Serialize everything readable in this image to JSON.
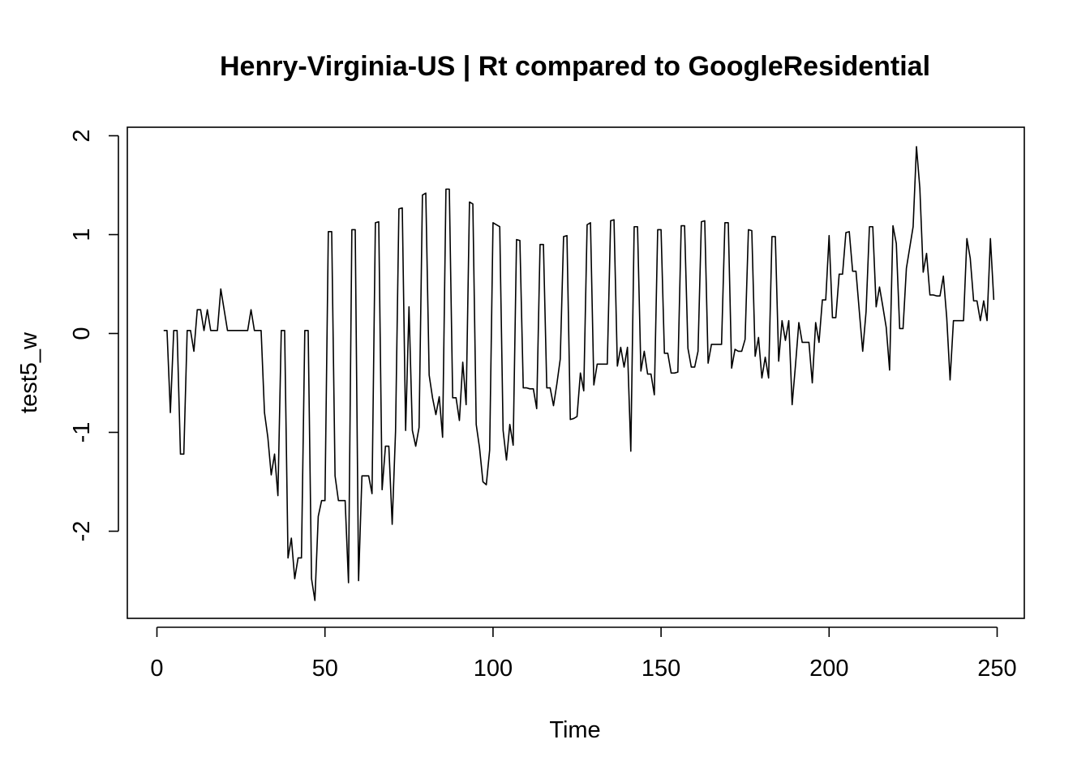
{
  "chart_data": {
    "type": "line",
    "title": "Henry-Virginia-US | Rt compared to GoogleResidential",
    "xlabel": "Time",
    "ylabel": "test5_w",
    "xlim": [
      0,
      250
    ],
    "ylim": [
      -2.7,
      2
    ],
    "x_ticks": [
      0,
      50,
      100,
      150,
      200,
      250
    ],
    "y_ticks": [
      -2,
      -1,
      0,
      1,
      2
    ],
    "x_tick_labels": [
      "0",
      "50",
      "100",
      "150",
      "200",
      "250"
    ],
    "y_tick_labels": [
      "-2",
      "-1",
      "0",
      "1",
      "2"
    ],
    "grid": false,
    "x_start": 2,
    "series": [
      {
        "values": [
          0.03,
          0.03,
          -0.8,
          0.03,
          0.03,
          -1.22,
          -1.22,
          0.03,
          0.03,
          -0.18,
          0.24,
          0.24,
          0.03,
          0.24,
          0.03,
          0.03,
          0.03,
          0.45,
          0.24,
          0.03,
          0.03,
          0.03,
          0.03,
          0.03,
          0.03,
          0.03,
          0.24,
          0.03,
          0.03,
          0.03,
          -0.8,
          -1.05,
          -1.43,
          -1.22,
          -1.64,
          0.03,
          0.03,
          -2.27,
          -2.07,
          -2.48,
          -2.27,
          -2.27,
          0.03,
          0.03,
          -2.48,
          -2.7,
          -1.85,
          -1.69,
          -1.69,
          1.03,
          1.03,
          -1.44,
          -1.69,
          -1.69,
          -1.69,
          -2.52,
          1.05,
          1.05,
          -2.5,
          -1.44,
          -1.44,
          -1.44,
          -1.62,
          1.12,
          1.13,
          -1.58,
          -1.14,
          -1.14,
          -1.93,
          -0.99,
          1.26,
          1.27,
          -0.98,
          0.27,
          -0.98,
          -1.14,
          -0.95,
          1.4,
          1.42,
          -0.42,
          -0.65,
          -0.82,
          -0.64,
          -1.05,
          1.46,
          1.46,
          -0.65,
          -0.65,
          -0.88,
          -0.29,
          -0.72,
          1.33,
          1.31,
          -0.92,
          -1.16,
          -1.5,
          -1.53,
          -1.18,
          1.12,
          1.1,
          1.08,
          -0.98,
          -1.28,
          -0.92,
          -1.13,
          0.95,
          0.94,
          -0.55,
          -0.55,
          -0.56,
          -0.56,
          -0.76,
          0.9,
          0.9,
          -0.55,
          -0.55,
          -0.73,
          -0.51,
          -0.26,
          0.98,
          0.99,
          -0.87,
          -0.86,
          -0.84,
          -0.4,
          -0.58,
          1.1,
          1.12,
          -0.52,
          -0.31,
          -0.31,
          -0.31,
          -0.31,
          1.14,
          1.15,
          -0.33,
          -0.14,
          -0.34,
          -0.14,
          -1.19,
          1.08,
          1.08,
          -0.38,
          -0.18,
          -0.41,
          -0.41,
          -0.62,
          1.05,
          1.05,
          -0.2,
          -0.2,
          -0.4,
          -0.4,
          -0.39,
          1.09,
          1.09,
          -0.15,
          -0.34,
          -0.34,
          -0.18,
          1.13,
          1.14,
          -0.3,
          -0.11,
          -0.11,
          -0.11,
          -0.11,
          1.12,
          1.12,
          -0.35,
          -0.16,
          -0.18,
          -0.18,
          -0.06,
          1.05,
          1.04,
          -0.23,
          -0.04,
          -0.45,
          -0.24,
          -0.45,
          0.98,
          0.98,
          -0.28,
          0.13,
          -0.07,
          0.13,
          -0.72,
          -0.32,
          0.11,
          -0.09,
          -0.09,
          -0.09,
          -0.5,
          0.11,
          -0.09,
          0.34,
          0.34,
          0.99,
          0.16,
          0.16,
          0.6,
          0.6,
          1.02,
          1.03,
          0.63,
          0.63,
          0.22,
          -0.18,
          0.22,
          1.08,
          1.08,
          0.27,
          0.47,
          0.27,
          0.06,
          -0.37,
          1.09,
          0.91,
          0.05,
          0.05,
          0.66,
          0.87,
          1.08,
          1.89,
          1.47,
          0.62,
          0.81,
          0.39,
          0.39,
          0.38,
          0.38,
          0.58,
          0.16,
          -0.47,
          0.13,
          0.13,
          0.13,
          0.13,
          0.96,
          0.76,
          0.33,
          0.33,
          0.13,
          0.33,
          0.13,
          0.96,
          0.34
        ]
      }
    ]
  }
}
